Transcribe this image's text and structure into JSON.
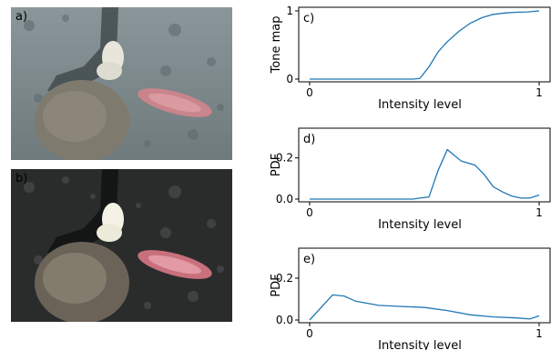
{
  "photos": [
    {
      "label": "a)",
      "variant": "original"
    },
    {
      "label": "b)",
      "variant": "enhanced"
    }
  ],
  "chart_data": [
    {
      "type": "line",
      "panel_label": "c)",
      "xlabel": "Intensity level",
      "ylabel": "Tone map",
      "xlim": [
        0,
        1
      ],
      "ylim": [
        0,
        1
      ],
      "xticks": [
        "0",
        "1"
      ],
      "yticks": [
        "0",
        "1"
      ],
      "line_color": "#1f77b4",
      "x": [
        0,
        0.1,
        0.2,
        0.3,
        0.4,
        0.45,
        0.48,
        0.52,
        0.56,
        0.6,
        0.65,
        0.7,
        0.75,
        0.8,
        0.85,
        0.9,
        0.95,
        1.0
      ],
      "y": [
        0,
        0,
        0,
        0,
        0,
        0,
        0.01,
        0.18,
        0.4,
        0.55,
        0.7,
        0.82,
        0.9,
        0.95,
        0.97,
        0.98,
        0.985,
        1.0
      ]
    },
    {
      "type": "line",
      "panel_label": "d)",
      "xlabel": "Intensity level",
      "ylabel": "PDF",
      "xlim": [
        0,
        1
      ],
      "ylim": [
        0,
        0.3
      ],
      "xticks": [
        "0",
        "1"
      ],
      "yticks": [
        "0.0",
        "0.2"
      ],
      "line_color": "#1f77b4",
      "x": [
        0,
        0.45,
        0.48,
        0.52,
        0.56,
        0.6,
        0.66,
        0.72,
        0.76,
        0.8,
        0.84,
        0.88,
        0.92,
        0.96,
        1.0
      ],
      "y": [
        0,
        0,
        0.005,
        0.01,
        0.14,
        0.24,
        0.185,
        0.165,
        0.12,
        0.06,
        0.035,
        0.015,
        0.005,
        0.005,
        0.02
      ]
    },
    {
      "type": "line",
      "panel_label": "e)",
      "xlabel": "Intensity level",
      "ylabel": "PDF",
      "xlim": [
        0,
        1
      ],
      "ylim": [
        0,
        0.3
      ],
      "xticks": [
        "0",
        "1"
      ],
      "yticks": [
        "0.0",
        "0.2"
      ],
      "line_color": "#1f77b4",
      "x": [
        0,
        0.05,
        0.1,
        0.15,
        0.2,
        0.3,
        0.4,
        0.5,
        0.6,
        0.7,
        0.8,
        0.9,
        0.96,
        1.0
      ],
      "y": [
        0,
        0.06,
        0.12,
        0.115,
        0.09,
        0.07,
        0.065,
        0.06,
        0.045,
        0.025,
        0.015,
        0.01,
        0.005,
        0.02
      ]
    }
  ]
}
